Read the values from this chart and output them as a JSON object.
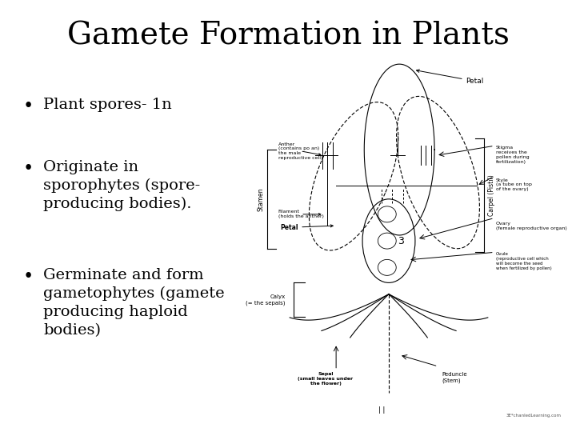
{
  "title": "Gamete Formation in Plants",
  "title_fontsize": 28,
  "title_font": "serif",
  "background_color": "#ffffff",
  "text_color": "#000000",
  "bullet_points": [
    "Plant spores- 1n",
    "Originate in\nsporophytes (spore-\nproducing bodies).",
    "Germinate and form\ngametophytes (gamete\nproducing haploid\nbodies)"
  ],
  "bullet_fontsize": 14,
  "figsize": [
    7.2,
    5.4
  ],
  "dpi": 100
}
